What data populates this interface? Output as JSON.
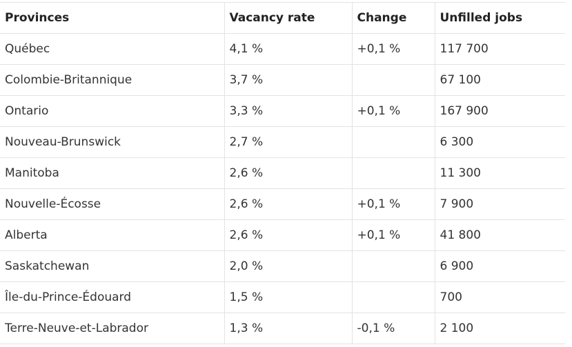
{
  "table": {
    "headers": [
      "Provinces",
      "Vacancy rate",
      "Change",
      "Unfilled jobs"
    ],
    "rows": [
      {
        "province": "Québec",
        "vacancy_rate": "4,1 %",
        "change": "+0,1 %",
        "unfilled_jobs": "117 700"
      },
      {
        "province": "Colombie-Britannique",
        "vacancy_rate": "3,7 %",
        "change": "",
        "unfilled_jobs": "67 100"
      },
      {
        "province": "Ontario",
        "vacancy_rate": "3,3 %",
        "change": "+0,1 %",
        "unfilled_jobs": "167 900"
      },
      {
        "province": "Nouveau-Brunswick",
        "vacancy_rate": "2,7 %",
        "change": "",
        "unfilled_jobs": "6 300"
      },
      {
        "province": "Manitoba",
        "vacancy_rate": "2,6 %",
        "change": "",
        "unfilled_jobs": "11 300"
      },
      {
        "province": "Nouvelle-Écosse",
        "vacancy_rate": "2,6 %",
        "change": "+0,1 %",
        "unfilled_jobs": "7 900"
      },
      {
        "province": "Alberta",
        "vacancy_rate": "2,6 %",
        "change": "+0,1 %",
        "unfilled_jobs": "41 800"
      },
      {
        "province": "Saskatchewan",
        "vacancy_rate": "2,0 %",
        "change": "",
        "unfilled_jobs": "6 900"
      },
      {
        "province": "Île-du-Prince-Édouard",
        "vacancy_rate": "1,5 %",
        "change": "",
        "unfilled_jobs": "700"
      },
      {
        "province": "Terre-Neuve-et-Labrador",
        "vacancy_rate": "1,3 %",
        "change": "-0,1 %",
        "unfilled_jobs": "2 100"
      }
    ]
  }
}
